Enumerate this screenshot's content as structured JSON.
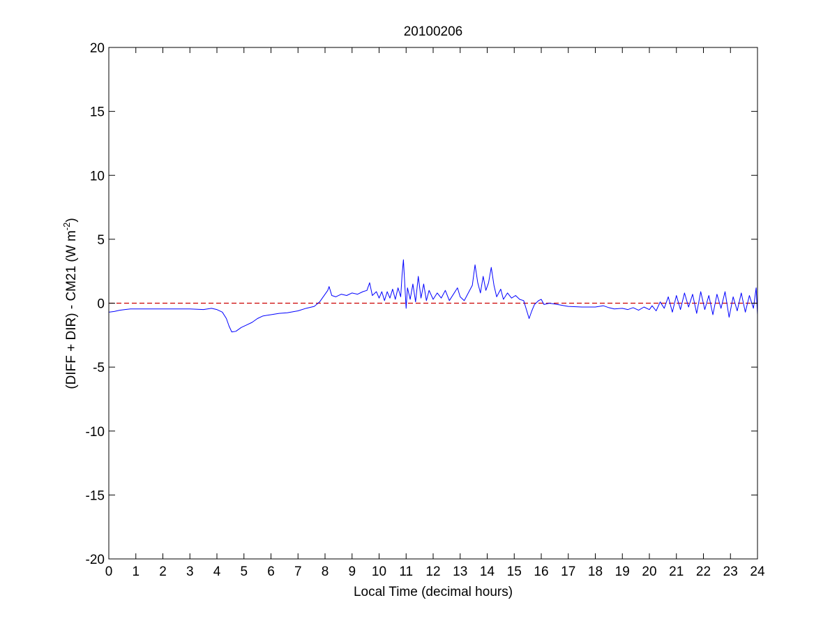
{
  "chart_data": {
    "type": "line",
    "title": "20100206",
    "xlabel": "Local Time (decimal hours)",
    "ylabel_main": "(DIFF + DIR) - CM21 (W m",
    "ylabel_sup": "-2",
    "ylabel_close": ")",
    "xlim": [
      0,
      24
    ],
    "ylim": [
      -20,
      20
    ],
    "xticks": [
      0,
      1,
      2,
      3,
      4,
      5,
      6,
      7,
      8,
      9,
      10,
      11,
      12,
      13,
      14,
      15,
      16,
      17,
      18,
      19,
      20,
      21,
      22,
      23,
      24
    ],
    "yticks": [
      -20,
      -15,
      -10,
      -5,
      0,
      5,
      10,
      15,
      20
    ],
    "grid": false,
    "legend": "none",
    "series": [
      {
        "color": "#0000ff",
        "style": "solid",
        "points": [
          [
            0.0,
            -0.7
          ],
          [
            0.2,
            -0.65
          ],
          [
            0.4,
            -0.55
          ],
          [
            0.6,
            -0.5
          ],
          [
            0.8,
            -0.45
          ],
          [
            1.0,
            -0.45
          ],
          [
            1.5,
            -0.45
          ],
          [
            2.0,
            -0.45
          ],
          [
            2.5,
            -0.45
          ],
          [
            3.0,
            -0.45
          ],
          [
            3.5,
            -0.5
          ],
          [
            3.8,
            -0.4
          ],
          [
            4.0,
            -0.5
          ],
          [
            4.2,
            -0.7
          ],
          [
            4.35,
            -1.2
          ],
          [
            4.45,
            -1.8
          ],
          [
            4.55,
            -2.25
          ],
          [
            4.7,
            -2.2
          ],
          [
            4.9,
            -1.9
          ],
          [
            5.1,
            -1.7
          ],
          [
            5.3,
            -1.5
          ],
          [
            5.5,
            -1.2
          ],
          [
            5.7,
            -1.0
          ],
          [
            6.0,
            -0.9
          ],
          [
            6.3,
            -0.8
          ],
          [
            6.6,
            -0.75
          ],
          [
            7.0,
            -0.6
          ],
          [
            7.3,
            -0.4
          ],
          [
            7.6,
            -0.25
          ],
          [
            7.8,
            0.1
          ],
          [
            7.9,
            0.4
          ],
          [
            8.0,
            0.7
          ],
          [
            8.1,
            1.0
          ],
          [
            8.15,
            1.3
          ],
          [
            8.25,
            0.6
          ],
          [
            8.4,
            0.5
          ],
          [
            8.6,
            0.7
          ],
          [
            8.8,
            0.6
          ],
          [
            9.0,
            0.8
          ],
          [
            9.2,
            0.7
          ],
          [
            9.4,
            0.9
          ],
          [
            9.55,
            1.0
          ],
          [
            9.65,
            1.6
          ],
          [
            9.75,
            0.6
          ],
          [
            9.9,
            0.9
          ],
          [
            10.0,
            0.4
          ],
          [
            10.1,
            0.9
          ],
          [
            10.2,
            0.2
          ],
          [
            10.3,
            0.9
          ],
          [
            10.4,
            0.4
          ],
          [
            10.5,
            1.1
          ],
          [
            10.6,
            0.3
          ],
          [
            10.7,
            1.2
          ],
          [
            10.8,
            0.5
          ],
          [
            10.85,
            2.2
          ],
          [
            10.9,
            3.4
          ],
          [
            10.95,
            1.5
          ],
          [
            11.0,
            -0.4
          ],
          [
            11.05,
            1.2
          ],
          [
            11.15,
            0.3
          ],
          [
            11.25,
            1.5
          ],
          [
            11.35,
            0.1
          ],
          [
            11.45,
            2.1
          ],
          [
            11.55,
            0.4
          ],
          [
            11.65,
            1.5
          ],
          [
            11.75,
            0.2
          ],
          [
            11.85,
            1.0
          ],
          [
            12.0,
            0.3
          ],
          [
            12.15,
            0.8
          ],
          [
            12.3,
            0.4
          ],
          [
            12.45,
            1.0
          ],
          [
            12.6,
            0.2
          ],
          [
            12.75,
            0.7
          ],
          [
            12.9,
            1.2
          ],
          [
            13.0,
            0.5
          ],
          [
            13.15,
            0.2
          ],
          [
            13.3,
            0.8
          ],
          [
            13.45,
            1.4
          ],
          [
            13.55,
            3.0
          ],
          [
            13.65,
            1.6
          ],
          [
            13.75,
            0.8
          ],
          [
            13.85,
            2.1
          ],
          [
            13.95,
            1.0
          ],
          [
            14.05,
            1.6
          ],
          [
            14.15,
            2.8
          ],
          [
            14.25,
            1.4
          ],
          [
            14.35,
            0.5
          ],
          [
            14.5,
            1.1
          ],
          [
            14.6,
            0.3
          ],
          [
            14.75,
            0.8
          ],
          [
            14.9,
            0.4
          ],
          [
            15.05,
            0.6
          ],
          [
            15.2,
            0.3
          ],
          [
            15.35,
            0.2
          ],
          [
            15.45,
            -0.5
          ],
          [
            15.55,
            -1.2
          ],
          [
            15.65,
            -0.6
          ],
          [
            15.75,
            -0.1
          ],
          [
            15.9,
            0.2
          ],
          [
            16.0,
            0.3
          ],
          [
            16.1,
            -0.1
          ],
          [
            16.3,
            0.0
          ],
          [
            16.6,
            -0.1
          ],
          [
            17.0,
            -0.25
          ],
          [
            17.5,
            -0.3
          ],
          [
            18.0,
            -0.3
          ],
          [
            18.3,
            -0.2
          ],
          [
            18.5,
            -0.35
          ],
          [
            18.7,
            -0.45
          ],
          [
            19.0,
            -0.4
          ],
          [
            19.2,
            -0.5
          ],
          [
            19.4,
            -0.35
          ],
          [
            19.6,
            -0.55
          ],
          [
            19.8,
            -0.3
          ],
          [
            20.0,
            -0.5
          ],
          [
            20.1,
            -0.2
          ],
          [
            20.25,
            -0.6
          ],
          [
            20.4,
            0.1
          ],
          [
            20.55,
            -0.4
          ],
          [
            20.7,
            0.5
          ],
          [
            20.85,
            -0.7
          ],
          [
            21.0,
            0.6
          ],
          [
            21.15,
            -0.5
          ],
          [
            21.3,
            0.8
          ],
          [
            21.45,
            -0.3
          ],
          [
            21.6,
            0.7
          ],
          [
            21.75,
            -0.8
          ],
          [
            21.9,
            0.9
          ],
          [
            22.05,
            -0.5
          ],
          [
            22.2,
            0.6
          ],
          [
            22.35,
            -0.9
          ],
          [
            22.5,
            0.7
          ],
          [
            22.65,
            -0.4
          ],
          [
            22.8,
            0.9
          ],
          [
            22.95,
            -1.1
          ],
          [
            23.1,
            0.5
          ],
          [
            23.25,
            -0.6
          ],
          [
            23.4,
            0.8
          ],
          [
            23.55,
            -0.7
          ],
          [
            23.7,
            0.6
          ],
          [
            23.85,
            -0.4
          ],
          [
            23.95,
            1.2
          ],
          [
            24.0,
            -0.9
          ]
        ]
      },
      {
        "color": "#cc0000",
        "style": "dashed",
        "points": [
          [
            0,
            0
          ],
          [
            24,
            0
          ]
        ]
      }
    ]
  }
}
